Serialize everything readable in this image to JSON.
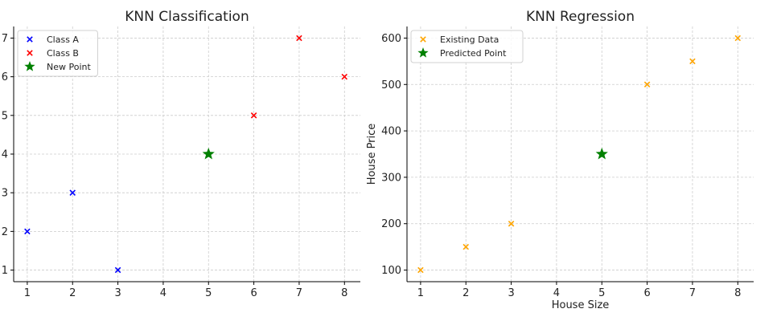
{
  "chart_data": [
    {
      "type": "scatter",
      "title": "KNN Classification",
      "xlabel": "",
      "ylabel": "",
      "xlim": [
        0.7,
        8.35
      ],
      "ylim": [
        0.7,
        7.3
      ],
      "xticks": [
        1,
        2,
        3,
        4,
        5,
        6,
        7,
        8
      ],
      "yticks": [
        1,
        2,
        3,
        4,
        5,
        6,
        7
      ],
      "grid": true,
      "legend_position": "top-left",
      "series": [
        {
          "name": "Class A",
          "marker": "x",
          "color": "#0000ff",
          "points": [
            [
              1,
              2
            ],
            [
              2,
              3
            ],
            [
              3,
              1
            ]
          ]
        },
        {
          "name": "Class B",
          "marker": "x",
          "color": "#ff0000",
          "points": [
            [
              6,
              5
            ],
            [
              7,
              7
            ],
            [
              8,
              6
            ]
          ]
        },
        {
          "name": "New Point",
          "marker": "star",
          "color": "#008000",
          "points": [
            [
              5,
              4
            ]
          ]
        }
      ]
    },
    {
      "type": "scatter",
      "title": "KNN Regression",
      "xlabel": "House Size",
      "ylabel": "House Price",
      "xlim": [
        0.7,
        8.35
      ],
      "ylim": [
        75,
        625
      ],
      "xticks": [
        1,
        2,
        3,
        4,
        5,
        6,
        7,
        8
      ],
      "yticks": [
        100,
        200,
        300,
        400,
        500,
        600
      ],
      "grid": true,
      "legend_position": "top-left",
      "series": [
        {
          "name": "Existing Data",
          "marker": "x",
          "color": "#ffa500",
          "points": [
            [
              1,
              100
            ],
            [
              2,
              150
            ],
            [
              3,
              200
            ],
            [
              6,
              500
            ],
            [
              7,
              550
            ],
            [
              8,
              600
            ]
          ]
        },
        {
          "name": "Predicted Point",
          "marker": "star",
          "color": "#008000",
          "points": [
            [
              5,
              350
            ]
          ]
        }
      ]
    }
  ]
}
